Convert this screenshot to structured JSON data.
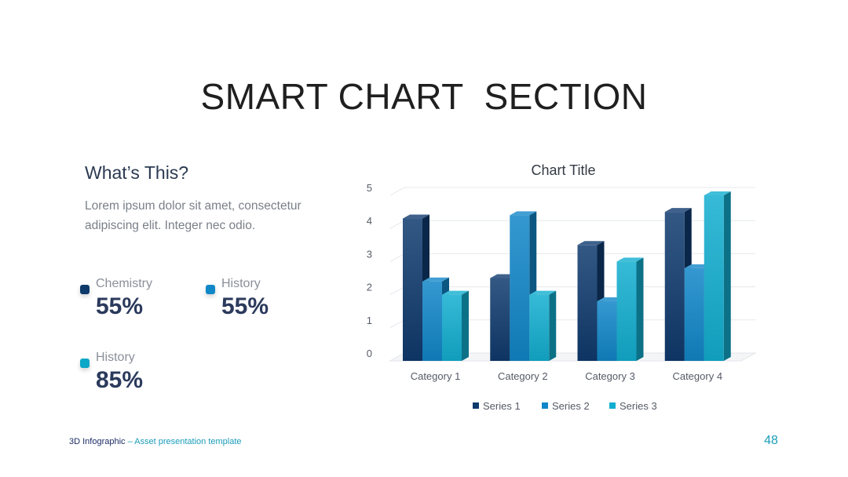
{
  "slide": {
    "title": "SMART CHART  SECTION",
    "heading": "What’s This?",
    "body": "Lorem ipsum dolor sit amet, consectetur adipiscing elit. Integer nec odio."
  },
  "stats": [
    {
      "label": "Chemistry",
      "value": "55%",
      "color": "#0d3a6b"
    },
    {
      "label": "History",
      "value": "55%",
      "color": "#1088c8"
    },
    {
      "label": "History",
      "value": "85%",
      "color": "#0aa7c6"
    }
  ],
  "footer": {
    "left_main": "3D Infographic",
    "left_sub": " – Asset presentation template",
    "page_number": "48"
  },
  "chart_data": {
    "type": "bar",
    "title": "Chart Title",
    "categories": [
      "Category 1",
      "Category 2",
      "Category 3",
      "Category 4"
    ],
    "series": [
      {
        "name": "Series 1",
        "values": [
          4.3,
          2.5,
          3.5,
          4.5
        ],
        "color": "#0f3a6e"
      },
      {
        "name": "Series 2",
        "values": [
          2.4,
          4.4,
          1.8,
          2.8
        ],
        "color": "#1186c8"
      },
      {
        "name": "Series 3",
        "values": [
          2.0,
          2.0,
          3.0,
          5.0
        ],
        "color": "#12aed0"
      }
    ],
    "yticks": [
      "0",
      "1",
      "2",
      "3",
      "4",
      "5"
    ],
    "ylim": [
      0,
      5
    ],
    "grid": true,
    "legend": "bottom"
  }
}
